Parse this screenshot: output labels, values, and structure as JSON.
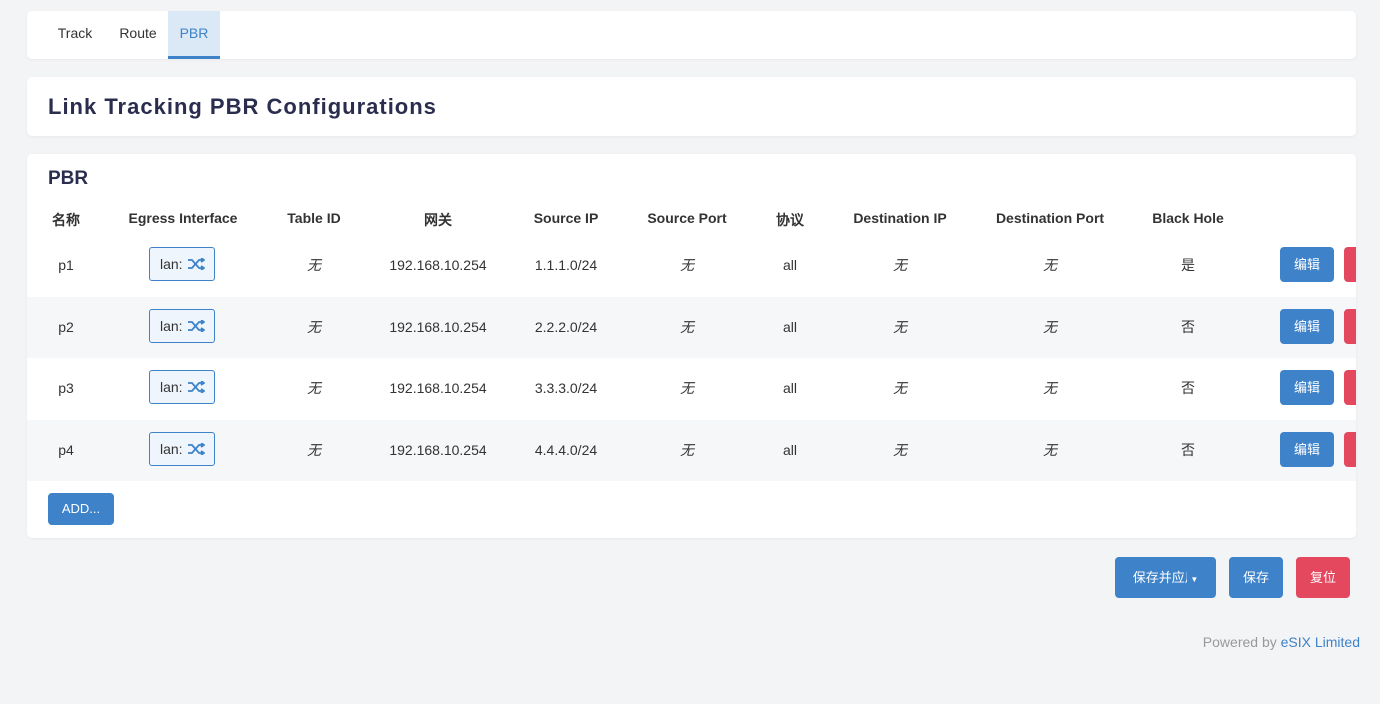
{
  "tabs": [
    "Track",
    "Route",
    "PBR"
  ],
  "page_title": "Link Tracking PBR Configurations",
  "section": {
    "title": "PBR",
    "columns": [
      "名称",
      "Egress Interface",
      "Table ID",
      "网关",
      "Source IP",
      "Source Port",
      "协议",
      "Destination IP",
      "Destination Port",
      "Black Hole"
    ],
    "rows": [
      [
        "p1",
        "lan:",
        "无",
        "192.168.10.254",
        "1.1.1.0/24",
        "无",
        "all",
        "无",
        "无",
        "是"
      ],
      [
        "p2",
        "lan:",
        "无",
        "192.168.10.254",
        "2.2.2.0/24",
        "无",
        "all",
        "无",
        "无",
        "否"
      ],
      [
        "p3",
        "lan:",
        "无",
        "192.168.10.254",
        "3.3.3.0/24",
        "无",
        "all",
        "无",
        "无",
        "否"
      ],
      [
        "p4",
        "lan:",
        "无",
        "192.168.10.254",
        "4.4.4.0/24",
        "无",
        "all",
        "无",
        "无",
        "否"
      ]
    ],
    "edit_button": "编辑",
    "add_button": "ADD..."
  },
  "actions": [
    "保存并应用",
    "保存",
    "复位"
  ],
  "footer": {
    "prefix": "Powered by",
    "link": "eSIX Limited"
  }
}
